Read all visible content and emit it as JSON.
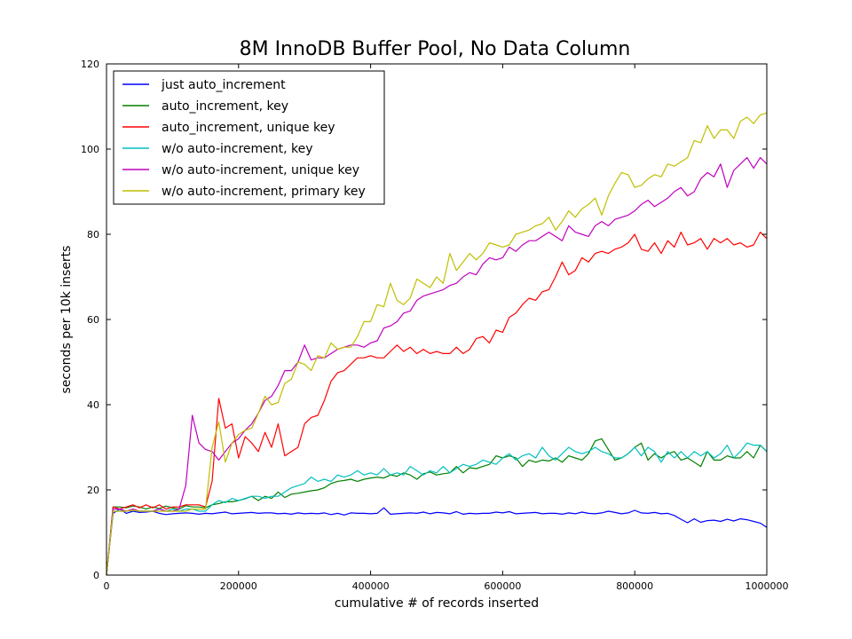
{
  "chart_data": {
    "type": "line",
    "title": "8M InnoDB Buffer Pool, No Data Column",
    "xlabel": "cumulative # of records inserted",
    "ylabel": "seconds per 10k inserts",
    "xlim": [
      0,
      1000000
    ],
    "ylim": [
      0,
      120
    ],
    "xticks": [
      0,
      200000,
      400000,
      600000,
      800000,
      1000000
    ],
    "xtick_labels": [
      "0",
      "200000",
      "400000",
      "600000",
      "800000",
      "1000000"
    ],
    "yticks": [
      0,
      20,
      40,
      60,
      80,
      100,
      120
    ],
    "ytick_labels": [
      "0",
      "20",
      "40",
      "60",
      "80",
      "100",
      "120"
    ],
    "grid": false,
    "legend": "top-left",
    "x": [
      0,
      10000,
      20000,
      30000,
      40000,
      50000,
      60000,
      70000,
      80000,
      90000,
      100000,
      110000,
      120000,
      130000,
      140000,
      150000,
      160000,
      170000,
      180000,
      190000,
      200000,
      210000,
      220000,
      230000,
      240000,
      250000,
      260000,
      270000,
      280000,
      290000,
      300000,
      310000,
      320000,
      330000,
      340000,
      350000,
      360000,
      370000,
      380000,
      390000,
      400000,
      410000,
      420000,
      430000,
      440000,
      450000,
      460000,
      470000,
      480000,
      490000,
      500000,
      510000,
      520000,
      530000,
      540000,
      550000,
      560000,
      570000,
      580000,
      590000,
      600000,
      610000,
      620000,
      630000,
      640000,
      650000,
      660000,
      670000,
      680000,
      690000,
      700000,
      710000,
      720000,
      730000,
      740000,
      750000,
      760000,
      770000,
      780000,
      790000,
      800000,
      810000,
      820000,
      830000,
      840000,
      850000,
      860000,
      870000,
      880000,
      890000,
      900000,
      910000,
      920000,
      930000,
      940000,
      950000,
      960000,
      970000,
      980000,
      990000,
      1000000
    ],
    "series": [
      {
        "name": "just auto_increment",
        "color": "#0000ff",
        "values": [
          0,
          14.5,
          15.5,
          14.5,
          15,
          14.7,
          14.8,
          15,
          14.5,
          14.2,
          14.4,
          14.5,
          14.6,
          14.5,
          14.3,
          14.5,
          14.4,
          14.6,
          14.8,
          14.4,
          14.5,
          14.6,
          14.7,
          14.5,
          14.6,
          14.6,
          14.4,
          14.5,
          14.3,
          14.6,
          14.4,
          14.5,
          14.4,
          14.6,
          14.2,
          14.5,
          14.1,
          14.6,
          14.5,
          14.5,
          14.4,
          14.5,
          15.8,
          14.3,
          14.4,
          14.5,
          14.6,
          14.5,
          14.8,
          14.4,
          14.7,
          14.6,
          14.4,
          14.9,
          14.3,
          14.5,
          14.4,
          14.5,
          14.5,
          14.8,
          14.6,
          14.9,
          14.4,
          14.5,
          14.6,
          14.7,
          14.4,
          14.5,
          14.5,
          14.3,
          14.6,
          14.4,
          14.8,
          14.5,
          14.4,
          14.6,
          15.0,
          14.7,
          14.4,
          14.6,
          15.2,
          14.6,
          14.5,
          14.7,
          14.4,
          14.5,
          14.0,
          13.1,
          12.3,
          13.2,
          12.4,
          12.8,
          12.9,
          12.6,
          13.1,
          12.7,
          13.2,
          13.0,
          12.6,
          12.2,
          11.2
        ]
      },
      {
        "name": "auto_increment, key",
        "color": "#008000",
        "values": [
          0,
          16.0,
          16.0,
          15.8,
          16.2,
          16.0,
          15.5,
          16.0,
          15.6,
          16.2,
          15.8,
          15.5,
          16.3,
          16.0,
          16.0,
          15.8,
          16.5,
          16.8,
          17.2,
          17.2,
          17.5,
          17.9,
          18.5,
          17.5,
          18.5,
          18.0,
          19.5,
          18.2,
          19.0,
          19.2,
          19.5,
          19.8,
          20.0,
          20.5,
          21.5,
          22.0,
          22.2,
          22.5,
          22.0,
          22.5,
          22.8,
          23.0,
          22.8,
          23.5,
          23.2,
          24.0,
          23.5,
          22.5,
          23.8,
          24.2,
          23.5,
          23.8,
          24.0,
          25.5,
          24.0,
          25.2,
          25.0,
          25.5,
          26.0,
          28.0,
          27.5,
          28.0,
          27.5,
          25.5,
          27.0,
          26.5,
          27.0,
          26.8,
          27.5,
          26.5,
          28.0,
          27.5,
          27.0,
          28.5,
          31.5,
          32.0,
          29.5,
          27.0,
          27.5,
          28.5,
          30.0,
          31.0,
          27.0,
          28.5,
          27.5,
          28.5,
          29.0,
          27.0,
          27.5,
          26.5,
          25.5,
          29.0,
          27.0,
          27.0,
          28.0,
          27.5,
          27.5,
          29.0,
          27.5,
          30.5,
          29.0
        ]
      },
      {
        "name": "auto_increment, unique key",
        "color": "#ff0000",
        "values": [
          0,
          16.0,
          15.5,
          16.0,
          16.5,
          15.8,
          16.5,
          15.8,
          16.5,
          15.5,
          16.0,
          16.0,
          16.5,
          16.5,
          16.5,
          16.0,
          22.0,
          41.5,
          34.5,
          35.5,
          27.5,
          32.5,
          31.0,
          29.0,
          33.5,
          30.0,
          35.5,
          28.0,
          29.0,
          30.0,
          35.5,
          37.0,
          37.5,
          41.0,
          45.5,
          47.5,
          48.0,
          49.5,
          51.0,
          51.0,
          51.5,
          51.0,
          51.0,
          52.5,
          54.0,
          52.5,
          53.5,
          52.0,
          53.0,
          52.0,
          52.5,
          52.0,
          52.0,
          53.5,
          52.0,
          53.0,
          55.5,
          56.0,
          54.5,
          57.5,
          57.0,
          60.5,
          61.5,
          63.5,
          65.0,
          64.5,
          66.5,
          67.0,
          70.0,
          73.5,
          70.5,
          71.5,
          74.5,
          73.5,
          75.5,
          76.0,
          75.5,
          76.5,
          77.0,
          78.0,
          80.0,
          76.5,
          76.0,
          78.0,
          75.5,
          78.5,
          77.0,
          80.5,
          77.5,
          78.0,
          79.0,
          76.5,
          79.0,
          78.0,
          79.0,
          77.5,
          78.0,
          77.0,
          77.5,
          80.5,
          79.0
        ]
      },
      {
        "name": "w/o auto-increment, key",
        "color": "#00bfbf",
        "values": [
          0,
          15.0,
          15.0,
          15.0,
          15.2,
          15.0,
          15.0,
          15.0,
          15.5,
          15.0,
          15.5,
          15.0,
          15.5,
          15.5,
          15.0,
          15.0,
          16.5,
          17.5,
          17.0,
          18.0,
          17.5,
          18.0,
          18.5,
          18.5,
          18.0,
          18.5,
          18.5,
          19.5,
          20.5,
          21.0,
          21.5,
          23.0,
          22.0,
          22.5,
          22.0,
          23.5,
          23.0,
          23.5,
          24.5,
          23.5,
          24.0,
          23.5,
          25.0,
          23.5,
          24.0,
          23.5,
          25.5,
          24.5,
          23.5,
          24.5,
          24.0,
          25.5,
          24.0,
          25.0,
          26.0,
          25.5,
          26.0,
          27.0,
          26.5,
          26.0,
          27.5,
          28.5,
          27.0,
          28.0,
          28.5,
          27.5,
          30.0,
          28.0,
          27.0,
          28.5,
          30.0,
          29.0,
          28.5,
          29.0,
          30.0,
          29.0,
          28.5,
          27.5,
          27.5,
          28.5,
          30.0,
          28.0,
          30.0,
          29.0,
          26.5,
          29.0,
          27.5,
          29.0,
          27.5,
          29.0,
          28.0,
          29.0,
          27.5,
          28.5,
          30.5,
          27.5,
          29.0,
          31.0,
          30.5,
          30.5,
          29.0
        ]
      },
      {
        "name": "w/o auto-increment, unique key",
        "color": "#bf00bf",
        "values": [
          0,
          15.5,
          15.5,
          15.0,
          15.5,
          15.0,
          15.0,
          15.0,
          15.5,
          15.0,
          15.0,
          15.5,
          21.0,
          37.5,
          31.0,
          29.5,
          29.0,
          27.0,
          29.0,
          31.0,
          32.0,
          34.0,
          35.5,
          38.0,
          41.0,
          42.0,
          44.5,
          48.0,
          48.0,
          50.0,
          54.0,
          50.5,
          51.0,
          51.0,
          52.0,
          53.0,
          53.5,
          54.0,
          54.0,
          53.5,
          54.5,
          55.0,
          58.0,
          58.5,
          59.5,
          61.5,
          62.0,
          64.5,
          65.5,
          66.0,
          66.5,
          67.0,
          68.0,
          68.5,
          70.0,
          71.0,
          70.5,
          73.0,
          74.5,
          74.0,
          74.5,
          77.0,
          76.0,
          77.5,
          78.5,
          78.5,
          79.5,
          80.5,
          79.5,
          78.5,
          82.0,
          80.5,
          80.0,
          79.5,
          82.0,
          83.0,
          82.0,
          83.5,
          84.0,
          84.5,
          85.5,
          87.0,
          88.0,
          86.5,
          87.5,
          88.5,
          90.0,
          91.0,
          89.0,
          90.0,
          93.0,
          94.5,
          93.5,
          96.5,
          91.0,
          95.0,
          96.5,
          98.0,
          95.5,
          98.0,
          96.5
        ]
      },
      {
        "name": "w/o auto-increment, primary key",
        "color": "#bfbf00",
        "values": [
          0,
          15.0,
          15.0,
          15.0,
          15.2,
          15.0,
          15.0,
          15.0,
          15.0,
          15.0,
          15.0,
          15.0,
          15.0,
          15.5,
          15.5,
          15.5,
          30.0,
          36.0,
          26.5,
          31.0,
          33.0,
          34.0,
          34.5,
          38.0,
          42.0,
          40.0,
          40.5,
          45.0,
          46.0,
          50.0,
          49.5,
          48.0,
          51.5,
          51.0,
          54.5,
          53.0,
          53.5,
          53.5,
          56.0,
          59.5,
          59.5,
          63.5,
          63.0,
          68.5,
          64.5,
          63.5,
          65.0,
          69.5,
          68.5,
          67.5,
          70.0,
          68.5,
          75.5,
          71.5,
          73.5,
          75.5,
          74.0,
          75.5,
          78.0,
          77.5,
          77.0,
          77.5,
          80.0,
          80.5,
          81.0,
          82.0,
          82.5,
          84.0,
          81.0,
          83.0,
          85.5,
          84.0,
          86.0,
          87.0,
          88.5,
          84.5,
          89.0,
          92.0,
          94.5,
          94.0,
          91.0,
          91.5,
          93.0,
          94.0,
          93.5,
          96.5,
          96.0,
          97.0,
          98.0,
          102.0,
          101.5,
          105.5,
          102.5,
          104.5,
          104.5,
          102.5,
          106.5,
          107.5,
          106.0,
          108.0,
          108.5
        ]
      }
    ]
  }
}
